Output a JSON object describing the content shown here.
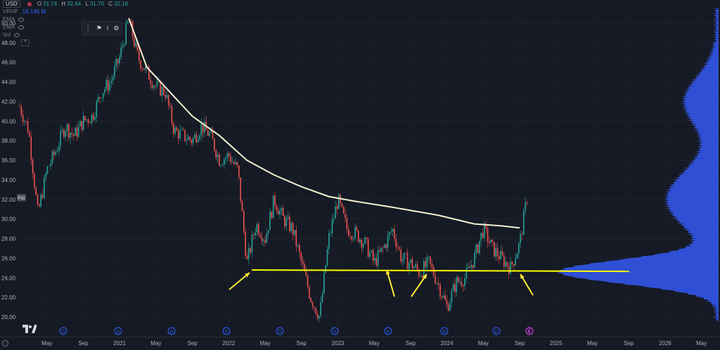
{
  "currency": "USD",
  "legend": {
    "symbol": "VRVP",
    "open_label": "O",
    "open": "31.74",
    "high_label": "H",
    "high": "32.44",
    "low_label": "L",
    "low": "31.70",
    "close_label": "C",
    "close": "32.18",
    "ind1": "EMA",
    "ind2": "EMA",
    "ind3": "Vol",
    "volume_value": "18.146 M",
    "collapse_symbol": "^"
  },
  "badge_label": "FXI",
  "chart_data": {
    "type": "candlestick",
    "ylim": [
      19.6,
      51.5
    ],
    "y_ticks": [
      "50.00",
      "48.00",
      "46.00",
      "44.00",
      "42.00",
      "40.00",
      "38.00",
      "36.00",
      "34.00",
      "32.00",
      "30.00",
      "28.00",
      "26.00",
      "24.00",
      "22.00",
      "20.00"
    ],
    "x_ticks": [
      "May",
      "Sep",
      "2021",
      "May",
      "Sep",
      "2022",
      "May",
      "Sep",
      "2023",
      "May",
      "Sep",
      "2024",
      "May",
      "Sep",
      "2025",
      "May",
      "Sep",
      "2026",
      "May"
    ],
    "price_path": [
      [
        "2020-02",
        41.5
      ],
      [
        "2020-03",
        39.0
      ],
      [
        "2020-04",
        30.5
      ],
      [
        "2020-05",
        35.0
      ],
      [
        "2020-06",
        37.0
      ],
      [
        "2020-07",
        39.5
      ],
      [
        "2020-08",
        38.5
      ],
      [
        "2020-09",
        40.0
      ],
      [
        "2020-10",
        40.5
      ],
      [
        "2020-11",
        43.0
      ],
      [
        "2020-12",
        44.0
      ],
      [
        "2021-01",
        46.5
      ],
      [
        "2021-02",
        50.4
      ],
      [
        "2021-03",
        46.5
      ],
      [
        "2021-04",
        45.0
      ],
      [
        "2021-05",
        43.5
      ],
      [
        "2021-06",
        43.0
      ],
      [
        "2021-07",
        39.0
      ],
      [
        "2021-08",
        38.5
      ],
      [
        "2021-09",
        38.0
      ],
      [
        "2021-10",
        39.5
      ],
      [
        "2021-11",
        38.5
      ],
      [
        "2021-12",
        36.0
      ],
      [
        "2022-01",
        36.5
      ],
      [
        "2022-02",
        35.0
      ],
      [
        "2022-03",
        25.5
      ],
      [
        "2022-04",
        29.5
      ],
      [
        "2022-05",
        28.0
      ],
      [
        "2022-06",
        32.0
      ],
      [
        "2022-07",
        30.0
      ],
      [
        "2022-08",
        29.0
      ],
      [
        "2022-09",
        25.5
      ],
      [
        "2022-10",
        22.0
      ],
      [
        "2022-11",
        20.0
      ],
      [
        "2022-12",
        28.0
      ],
      [
        "2023-01",
        32.0
      ],
      [
        "2023-02",
        29.0
      ],
      [
        "2023-03",
        28.5
      ],
      [
        "2023-04",
        27.5
      ],
      [
        "2023-05",
        25.5
      ],
      [
        "2023-06",
        27.0
      ],
      [
        "2023-07",
        29.0
      ],
      [
        "2023-08",
        26.0
      ],
      [
        "2023-09",
        25.5
      ],
      [
        "2023-10",
        24.5
      ],
      [
        "2023-11",
        25.5
      ],
      [
        "2023-12",
        23.5
      ],
      [
        "2024-01",
        21.0
      ],
      [
        "2024-02",
        23.5
      ],
      [
        "2024-03",
        24.0
      ],
      [
        "2024-04",
        26.0
      ],
      [
        "2024-05",
        29.0
      ],
      [
        "2024-06",
        27.0
      ],
      [
        "2024-07",
        26.0
      ],
      [
        "2024-08",
        25.0
      ],
      [
        "2024-09",
        27.5
      ],
      [
        "2024-09-25",
        32.2
      ]
    ],
    "ma_line": [
      [
        "2021-02",
        50.5
      ],
      [
        "2021-04",
        45.5
      ],
      [
        "2021-06",
        43.5
      ],
      [
        "2021-09",
        40.5
      ],
      [
        "2021-12",
        38.5
      ],
      [
        "2022-03",
        36.0
      ],
      [
        "2022-06",
        34.5
      ],
      [
        "2022-09",
        33.3
      ],
      [
        "2022-12",
        32.3
      ],
      [
        "2023-03",
        31.8
      ],
      [
        "2023-07",
        31.2
      ],
      [
        "2023-12",
        30.4
      ],
      [
        "2024-04",
        29.5
      ],
      [
        "2024-07",
        29.3
      ],
      [
        "2024-09",
        29.1
      ]
    ],
    "support_level": 24.8,
    "volume_profile_peak_price": 24.6,
    "colors": {
      "up": "#26a69a",
      "down": "#ef5350",
      "ma": "#f5efd0",
      "support": "#ffff00",
      "profile": "#2f4fd4",
      "arrow": "#ffee32"
    }
  }
}
